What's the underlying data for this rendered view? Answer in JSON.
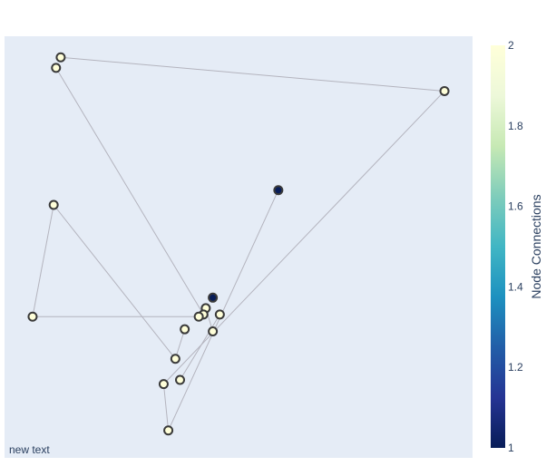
{
  "chart_data": {
    "type": "scatter",
    "title": "",
    "xlabel": "",
    "ylabel": "",
    "grid": false,
    "show_axes": false,
    "colors": {
      "plot_bg": "#E5ECF6",
      "edge": "#B4B4BE",
      "marker_outline": "#3a3a3a",
      "colorscale": [
        "#081D58",
        "#253494",
        "#225EA8",
        "#1D91C0",
        "#41B6C4",
        "#7FCDBB",
        "#C7E9B4",
        "#EDF8D9",
        "#FFFFD9"
      ]
    },
    "colorbar": {
      "title": "Node Connections",
      "range": [
        1,
        2
      ],
      "tick_labels": [
        "1",
        "1.2",
        "1.4",
        "1.6",
        "1.8",
        "2"
      ],
      "tick_values": [
        1,
        1.2,
        1.4,
        1.6,
        1.8,
        2
      ]
    },
    "nodes": [
      {
        "x": 0.12,
        "y": 0.95,
        "connections": 2
      },
      {
        "x": 0.11,
        "y": 0.925,
        "connections": 2
      },
      {
        "x": 0.94,
        "y": 0.87,
        "connections": 2
      },
      {
        "x": 0.585,
        "y": 0.635,
        "connections": 1
      },
      {
        "x": 0.105,
        "y": 0.6,
        "connections": 2
      },
      {
        "x": 0.445,
        "y": 0.38,
        "connections": 1
      },
      {
        "x": 0.43,
        "y": 0.355,
        "connections": 2
      },
      {
        "x": 0.46,
        "y": 0.34,
        "connections": 2
      },
      {
        "x": 0.425,
        "y": 0.34,
        "connections": 2
      },
      {
        "x": 0.415,
        "y": 0.335,
        "connections": 2
      },
      {
        "x": 0.06,
        "y": 0.335,
        "connections": 2
      },
      {
        "x": 0.385,
        "y": 0.305,
        "connections": 2
      },
      {
        "x": 0.445,
        "y": 0.3,
        "connections": 2
      },
      {
        "x": 0.365,
        "y": 0.235,
        "connections": 2
      },
      {
        "x": 0.375,
        "y": 0.185,
        "connections": 2
      },
      {
        "x": 0.34,
        "y": 0.175,
        "connections": 2
      },
      {
        "x": 0.35,
        "y": 0.065,
        "connections": 2
      }
    ],
    "edges": [
      [
        0,
        2
      ],
      [
        1,
        8
      ],
      [
        4,
        10
      ],
      [
        4,
        13
      ],
      [
        10,
        9
      ],
      [
        2,
        15
      ],
      [
        3,
        16
      ],
      [
        15,
        16
      ],
      [
        11,
        13
      ],
      [
        7,
        14
      ],
      [
        6,
        12
      ]
    ],
    "annotation": "new text"
  }
}
